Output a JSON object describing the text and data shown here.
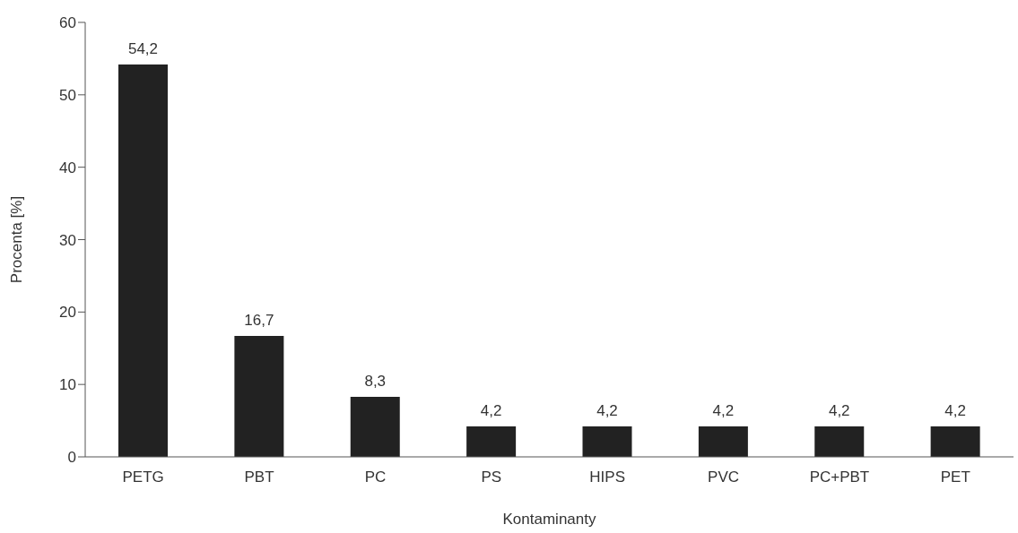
{
  "chart_data": {
    "type": "bar",
    "xlabel": "Kontaminanty",
    "ylabel": "Procenta [%]",
    "categories": [
      "PETG",
      "PBT",
      "PC",
      "PS",
      "HIPS",
      "PVC",
      "PC+PBT",
      "PET"
    ],
    "values": [
      54.2,
      16.7,
      8.3,
      4.2,
      4.2,
      4.2,
      4.2,
      4.2
    ],
    "value_labels": [
      "54,2",
      "16,7",
      "8,3",
      "4,2",
      "4,2",
      "4,2",
      "4,2",
      "4,2"
    ],
    "color": "#222222",
    "ylim": [
      0,
      60
    ],
    "yticks": [
      0,
      10,
      20,
      30,
      40,
      50,
      60
    ],
    "grid": false,
    "legend": false
  }
}
